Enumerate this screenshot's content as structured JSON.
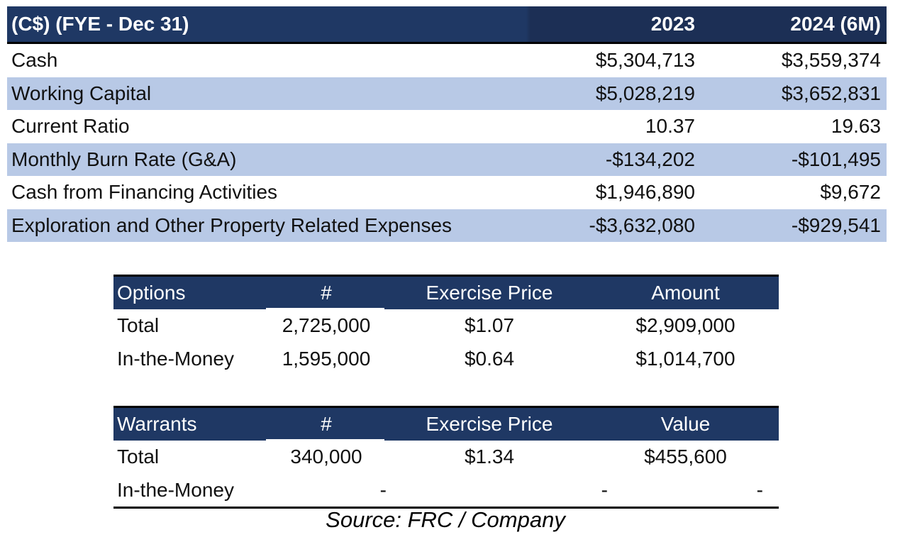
{
  "financials": {
    "header": {
      "label": "(C$) (FYE - Dec 31)",
      "col1": "2023",
      "col2": "2024 (6M)"
    },
    "rows": [
      {
        "label": "Cash",
        "v2023": "$5,304,713",
        "v2024": "$3,559,374"
      },
      {
        "label": "Working Capital",
        "v2023": "$5,028,219",
        "v2024": "$3,652,831"
      },
      {
        "label": "Current Ratio",
        "v2023": "10.37",
        "v2024": "19.63"
      },
      {
        "label": "Monthly Burn Rate (G&A)",
        "v2023": "-$134,202",
        "v2024": "-$101,495"
      },
      {
        "label": "Cash from Financing Activities",
        "v2023": "$1,946,890",
        "v2024": "$9,672"
      },
      {
        "label": "Exploration and Other Property Related Expenses",
        "v2023": "-$3,632,080",
        "v2024": "-$929,541"
      }
    ],
    "colors": {
      "header_bg": "#1f3864",
      "shaded_row": "#b8c9e6"
    }
  },
  "options": {
    "header": {
      "label": "Options",
      "num": "#",
      "price": "Exercise Price",
      "amount": "Amount"
    },
    "rows": [
      {
        "label": "Total",
        "num": "2,725,000",
        "price": "$1.07",
        "amount": "$2,909,000"
      },
      {
        "label": "In-the-Money",
        "num": "1,595,000",
        "price": "$0.64",
        "amount": "$1,014,700"
      }
    ]
  },
  "warrants": {
    "header": {
      "label": "Warrants",
      "num": "#",
      "price": "Exercise Price",
      "amount": "Value"
    },
    "rows": [
      {
        "label": "Total",
        "num": "340,000",
        "price": "$1.34",
        "amount": "$455,600"
      },
      {
        "label": "In-the-Money",
        "num": "-",
        "price": "-",
        "amount": "-"
      }
    ]
  },
  "source": "Source: FRC / Company"
}
